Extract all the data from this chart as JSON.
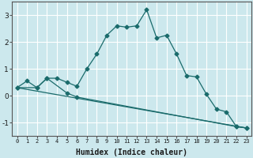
{
  "xlabel": "Humidex (Indice chaleur)",
  "bg_color": "#cce8ed",
  "grid_color": "#ffffff",
  "line_color": "#1a6b6b",
  "xlim": [
    -0.5,
    23.5
  ],
  "ylim": [
    -1.5,
    3.5
  ],
  "yticks": [
    -1,
    0,
    1,
    2,
    3
  ],
  "xtick_vals": [
    0,
    1,
    2,
    3,
    4,
    5,
    6,
    7,
    8,
    9,
    10,
    11,
    12,
    13,
    14,
    15,
    16,
    17,
    18,
    19,
    20,
    21,
    22,
    23
  ],
  "xtick_labels": [
    "0",
    "1",
    "2",
    "3",
    "4",
    "5",
    "6",
    "7",
    "8",
    "9",
    "10",
    "11",
    "12",
    "13",
    "14",
    "15",
    "16",
    "17",
    "18",
    "19",
    "20",
    "21",
    "22",
    "23"
  ],
  "line1_x": [
    0,
    1,
    2,
    3,
    4,
    5,
    6,
    7,
    8,
    9,
    10,
    11,
    12,
    13,
    14,
    15,
    16,
    17,
    18,
    19,
    20,
    21,
    22,
    23
  ],
  "line1_y": [
    0.3,
    0.55,
    0.3,
    0.65,
    0.65,
    0.5,
    0.35,
    1.0,
    1.55,
    2.25,
    2.6,
    2.55,
    2.6,
    3.2,
    2.15,
    2.25,
    1.55,
    0.75,
    0.7,
    0.05,
    -0.5,
    -0.6,
    -1.15,
    -1.2
  ],
  "line2_x": [
    0,
    2,
    3,
    5,
    6,
    22,
    23
  ],
  "line2_y": [
    0.3,
    0.3,
    0.65,
    0.1,
    -0.05,
    -1.15,
    -1.2
  ],
  "line3_x": [
    0,
    23
  ],
  "line3_y": [
    0.3,
    -1.2
  ],
  "xlabel_fontsize": 7,
  "tick_fontsize": 5,
  "ytick_fontsize": 6.5
}
